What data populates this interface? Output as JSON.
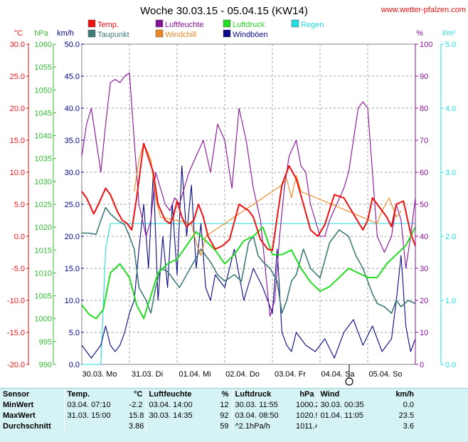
{
  "header": {
    "title": "Woche 30.03.15 - 05.04.15 (KW14)",
    "site": "www.wetter-pfalzen.com"
  },
  "colors": {
    "temp": "#ee1111",
    "taupunkt": "#3f7a78",
    "luftfeuchte": "#881199",
    "windchill": "#ee8822",
    "luftdruck": "#22dd22",
    "windboeen": "#0a0a88",
    "regen": "#22dddd",
    "axis_hpa": "#33bb33",
    "axis_kmh": "#000088",
    "axis_c": "#ee1111",
    "axis_pct": "#881199",
    "axis_regen": "#22dddd"
  },
  "axis_units": {
    "c": "°C",
    "hpa": "hPa",
    "kmh": "km/h",
    "pct": "%",
    "regen": "l/m²"
  },
  "chart_data": {
    "type": "line",
    "title": "Woche 30.03.15 - 05.04.15 (KW14)",
    "x_ticks": [
      "30.03.  Mo",
      "31.03.  Di",
      "01.04.  Mi",
      "02.04.  Do",
      "03.04.  Fr",
      "04.04.  Sa",
      "05.04.  So"
    ],
    "x_range_days": [
      0,
      7
    ],
    "axes": {
      "temp_c": {
        "range": [
          -20,
          30
        ],
        "ticks": [
          "30.0",
          "25.0",
          "20.0",
          "15.0",
          "10.0",
          "5.0",
          "0.0",
          "-5.0",
          "-10.0",
          "-15.0",
          "-20.0"
        ]
      },
      "pressure_hpa": {
        "range": [
          990,
          1060
        ],
        "ticks": [
          "1060",
          "1055",
          "1050",
          "1045",
          "1040",
          "1035",
          "1030",
          "1025",
          "1020",
          "1015",
          "1010",
          "1005",
          "1000",
          "995",
          "990"
        ]
      },
      "wind_kmh": {
        "range": [
          0,
          50
        ],
        "ticks": [
          "50.0",
          "45.0",
          "40.0",
          "35.0",
          "30.0",
          "25.0",
          "20.0",
          "15.0",
          "10.0",
          "5.0",
          "0.0"
        ]
      },
      "humidity_pct": {
        "range": [
          0,
          100
        ],
        "ticks": [
          "100",
          "90",
          "80",
          "70",
          "60",
          "50",
          "40",
          "30",
          "20",
          "10",
          "0"
        ]
      },
      "rain_lm2": {
        "range": [
          0,
          5
        ],
        "ticks": [
          "5.0",
          "4.0",
          "3.0",
          "2.0",
          "1.0",
          "0.0"
        ]
      }
    },
    "legend": [
      {
        "name": "Temp.",
        "color": "#ee1111"
      },
      {
        "name": "Taupunkt",
        "color": "#3f7a78"
      },
      {
        "name": "Luftfeuchte",
        "color": "#881199"
      },
      {
        "name": "Windchill",
        "color": "#ee8822"
      },
      {
        "name": "Luftdruck",
        "color": "#22dd22"
      },
      {
        "name": "Windböen",
        "color": "#0a0a88"
      },
      {
        "name": "Regen",
        "color": "#22dddd"
      }
    ],
    "series": [
      {
        "name": "Temp.",
        "axis": "temp_c",
        "x": [
          0,
          0.1,
          0.25,
          0.35,
          0.5,
          0.6,
          0.75,
          0.85,
          0.95,
          1.05,
          1.15,
          1.3,
          1.5,
          1.6,
          1.75,
          1.85,
          1.92,
          2.0,
          2.1,
          2.2,
          2.35,
          2.45,
          2.55,
          2.65,
          2.8,
          2.95,
          3.1,
          3.3,
          3.5,
          3.6,
          3.75,
          3.9,
          4.0,
          4.1,
          4.2,
          4.35,
          4.5,
          4.65,
          4.8,
          4.95,
          5.1,
          5.3,
          5.5,
          5.7,
          5.9,
          6.0,
          6.1,
          6.25,
          6.4,
          6.5,
          6.6,
          6.75,
          6.9,
          7.0
        ],
        "y": [
          7,
          6,
          3.5,
          5,
          7.5,
          6.5,
          3.8,
          2.5,
          2,
          1,
          6,
          14.5,
          10,
          5,
          2.5,
          2,
          3,
          5.5,
          3,
          1.5,
          2.5,
          5,
          3,
          0,
          -2,
          -1.5,
          -0.5,
          5,
          4,
          3,
          -0.5,
          -2,
          -2.2,
          3,
          8,
          11,
          9,
          5,
          1,
          0,
          1.8,
          6.5,
          6,
          3.5,
          1,
          2.5,
          6,
          4.5,
          3,
          1.5,
          5,
          5.5,
          0.5,
          -1.5
        ]
      },
      {
        "name": "Windchill",
        "axis": "temp_c",
        "x": [
          1.1,
          1.2,
          1.3,
          1.45,
          1.55,
          1.65,
          2.3,
          2.4,
          2.5,
          2.6,
          4.2,
          4.3,
          4.4,
          4.5,
          4.6,
          6.2,
          6.3,
          6.45,
          6.6,
          6.7
        ],
        "y": [
          7,
          12,
          14.5,
          12,
          6,
          3,
          2,
          -1,
          -3,
          0,
          8,
          9,
          6,
          9.5,
          7,
          2,
          4,
          6,
          3,
          4
        ]
      },
      {
        "name": "Taupunkt",
        "axis": "temp_c",
        "x": [
          0,
          0.15,
          0.3,
          0.4,
          0.5,
          0.6,
          0.75,
          0.9,
          1.0,
          1.1,
          1.2,
          1.35,
          1.45,
          1.55,
          1.65,
          1.8,
          1.95,
          2.05,
          2.2,
          2.35,
          2.5,
          2.7,
          2.85,
          3.0,
          3.2,
          3.35,
          3.5,
          3.6,
          3.7,
          3.8,
          3.95,
          4.1,
          4.2,
          4.3,
          4.4,
          4.5,
          4.65,
          4.8,
          5.0,
          5.2,
          5.4,
          5.6,
          5.75,
          5.9,
          6.0,
          6.1,
          6.2,
          6.35,
          6.5,
          6.6,
          6.7,
          6.85,
          7.0
        ],
        "y": [
          0.5,
          0.5,
          0.3,
          2.5,
          4.5,
          3.5,
          2.5,
          1.8,
          0,
          -2,
          -8,
          -10,
          -12,
          -8,
          -5,
          -5.5,
          -7,
          -8,
          -6,
          -4,
          -2,
          -4,
          -6,
          -7,
          -6,
          -7,
          -1,
          0,
          -3,
          -4,
          -5,
          -7,
          -12,
          -10,
          -7,
          -6,
          -2,
          -5,
          -6.5,
          -1,
          1,
          0,
          -3,
          -5,
          -7,
          -9,
          -10.5,
          -11,
          -12,
          -10,
          -11,
          -10,
          -10.5
        ]
      },
      {
        "name": "Luftfeuchte",
        "axis": "humidity_pct",
        "x": [
          0,
          0.1,
          0.2,
          0.3,
          0.4,
          0.5,
          0.6,
          0.7,
          0.8,
          0.9,
          1.0,
          1.1,
          1.2,
          1.35,
          1.45,
          1.55,
          1.65,
          1.75,
          1.85,
          1.95,
          2.05,
          2.15,
          2.25,
          2.4,
          2.55,
          2.7,
          2.85,
          3.0,
          3.15,
          3.3,
          3.45,
          3.6,
          3.75,
          3.85,
          3.95,
          4.05,
          4.15,
          4.25,
          4.35,
          4.5,
          4.6,
          4.7,
          4.8,
          4.9,
          5.0,
          5.1,
          5.2,
          5.35,
          5.5,
          5.6,
          5.7,
          5.8,
          5.9,
          6.0,
          6.1,
          6.2,
          6.35,
          6.5,
          6.6,
          6.7,
          6.8,
          6.9,
          7.0
        ],
        "y": [
          65,
          75,
          80,
          70,
          60,
          75,
          88,
          89,
          88,
          90,
          91,
          70,
          50,
          40,
          45,
          60,
          55,
          50,
          48,
          52,
          50,
          55,
          60,
          65,
          70,
          60,
          75,
          70,
          55,
          80,
          70,
          55,
          45,
          30,
          15,
          20,
          40,
          55,
          65,
          70,
          62,
          60,
          50,
          45,
          40,
          40,
          45,
          50,
          55,
          60,
          70,
          80,
          82,
          80,
          60,
          40,
          35,
          40,
          50,
          45,
          30,
          40,
          52
        ]
      },
      {
        "name": "Luftdruck",
        "axis": "pressure_hpa",
        "x": [
          0,
          0.15,
          0.3,
          0.45,
          0.6,
          0.8,
          1.0,
          1.15,
          1.3,
          1.45,
          1.6,
          1.8,
          2.0,
          2.2,
          2.4,
          2.6,
          2.8,
          3.0,
          3.2,
          3.4,
          3.6,
          3.8,
          4.0,
          4.2,
          4.4,
          4.6,
          4.8,
          5.0,
          5.2,
          5.4,
          5.6,
          5.8,
          6.0,
          6.2,
          6.4,
          6.6,
          6.8,
          7.0
        ],
        "y": [
          1003,
          1001,
          1000,
          1002,
          1010,
          1012,
          1009,
          1003,
          1000,
          1005,
          1010,
          1012,
          1013,
          1016,
          1019,
          1017,
          1015,
          1012,
          1014,
          1017,
          1018,
          1020,
          1014,
          1014,
          1015,
          1011,
          1008,
          1006,
          1007,
          1009,
          1011,
          1010,
          1009,
          1009,
          1012,
          1014,
          1016,
          1020
        ]
      },
      {
        "name": "Windböen",
        "axis": "wind_kmh",
        "x": [
          0,
          0.1,
          0.2,
          0.3,
          0.4,
          0.5,
          0.6,
          0.7,
          0.8,
          0.9,
          1.0,
          1.1,
          1.2,
          1.3,
          1.4,
          1.5,
          1.6,
          1.7,
          1.8,
          1.9,
          2.0,
          2.1,
          2.2,
          2.3,
          2.4,
          2.5,
          2.6,
          2.7,
          2.8,
          3.0,
          3.2,
          3.4,
          3.6,
          3.8,
          4.0,
          4.1,
          4.2,
          4.3,
          4.4,
          4.5,
          4.7,
          4.9,
          5.1,
          5.3,
          5.5,
          5.7,
          5.9,
          6.1,
          6.3,
          6.5,
          6.6,
          6.7,
          6.8,
          6.9,
          7.0
        ],
        "y": [
          3,
          2,
          1,
          2,
          3,
          6,
          3,
          2,
          3,
          5,
          8,
          10,
          18,
          25,
          15,
          30,
          10,
          20,
          12,
          25,
          14,
          31,
          20,
          28,
          15,
          22,
          12,
          10,
          14,
          12,
          18,
          10,
          15,
          12,
          8,
          18,
          5,
          3,
          2,
          5,
          3,
          2,
          4,
          1,
          5,
          7,
          3,
          6,
          2,
          4,
          10,
          17,
          6,
          2,
          4
        ]
      },
      {
        "name": "Regen",
        "axis": "rain_lm2",
        "x": [
          0,
          0.4,
          0.5,
          0.6,
          7.0
        ],
        "y": [
          0,
          0,
          1.8,
          2.2,
          2.2
        ]
      }
    ]
  },
  "stats": {
    "headers": {
      "sensor": "Sensor",
      "temp": "Temp.",
      "temp_unit": "°C",
      "hum": "Luftfeuchte",
      "hum_unit": "%",
      "press": "Luftdruck",
      "press_unit": "hPa",
      "wind": "Wind",
      "wind_unit": "km/h"
    },
    "rows": [
      {
        "label": "MinWert",
        "t_time": "03.04.  07:10",
        "t_val": "-2.2",
        "h_time": "03.04.  14:00",
        "h_val": "12",
        "p_time": "30.03.  11:55",
        "p_val": "1000.2",
        "w_time": "30.03.  00:35",
        "w_val": "0.0"
      },
      {
        "label": "MaxWert",
        "t_time": "31.03.  15:00",
        "t_val": "15.8",
        "h_time": "30.03.  14:35",
        "h_val": "92",
        "p_time": "03.04.  08:50",
        "p_val": "1020.9",
        "w_time": "01.04.  11:05",
        "w_val": "23.5"
      },
      {
        "label": "Durchschnitt",
        "t_time": "",
        "t_val": "3.86",
        "h_time": "",
        "h_val": "59",
        "p_time": "^2.1hPa/h",
        "p_val": "1011.4",
        "w_time": "",
        "w_val": "3.6"
      }
    ]
  }
}
